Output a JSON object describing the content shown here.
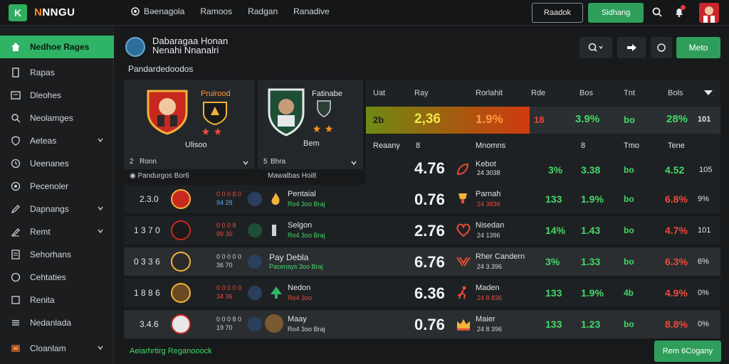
{
  "app": {
    "logo_letter": "K",
    "title_a": "N",
    "title_b": "NNGU"
  },
  "topnav": [
    {
      "label": "Bəenagola",
      "icon": "target-icon"
    },
    {
      "label": "Ramoos"
    },
    {
      "label": "Radgan"
    },
    {
      "label": "Ranadive"
    }
  ],
  "top_actions": {
    "outline_label": "Raadok",
    "green_label": "Sidhang"
  },
  "sidebar": {
    "items": [
      {
        "label": "Nedhoe Rages",
        "icon": "home-icon",
        "active": true
      },
      {
        "label": "Rapas",
        "icon": "bookmark-icon"
      },
      {
        "label": "Dleohes",
        "icon": "card-icon"
      },
      {
        "label": "Neolamges",
        "icon": "search-icon"
      },
      {
        "label": "Aeteas",
        "icon": "shield-icon",
        "chevron": true
      },
      {
        "label": "Ueenanes",
        "icon": "clock-icon"
      },
      {
        "label": "Pecenoler",
        "icon": "globe-icon"
      },
      {
        "label": "Dapnangs",
        "icon": "pencil-icon",
        "chevron": true
      },
      {
        "label": "Remt",
        "icon": "pen-icon",
        "chevron": true
      },
      {
        "label": "Sehorhans",
        "icon": "document-icon"
      },
      {
        "label": "Cehtaties",
        "icon": "circle-icon"
      },
      {
        "label": "Renita",
        "icon": "tile-icon"
      },
      {
        "label": "Nedanlada",
        "icon": "list-icon"
      },
      {
        "label": "Cloanlam",
        "icon": "box-icon",
        "chevron": true
      }
    ]
  },
  "header": {
    "title_line1": "Dabaragaa Honan",
    "title_line2": "Nenahi Nnanalri",
    "subtitle": "Pandardedoodos"
  },
  "toolbar": {
    "green_label": "Meto"
  },
  "match_cards": [
    {
      "label": "Pruirood",
      "team": "Ulisoo",
      "footer": "Ronn",
      "footer_prefix": "2",
      "below": "Pandurgos Bor6"
    },
    {
      "label": "Fatinabe",
      "team": "Bem",
      "footer": "Bhra",
      "footer_prefix": "5",
      "below": "Mawalbas Hoi8"
    }
  ],
  "stats_header": [
    "Uat",
    "Ray",
    "Rorlahit",
    "Rde",
    "Bos",
    "Tnt",
    "Bols"
  ],
  "highlight_row": {
    "a": "2b",
    "b": "2,36",
    "c": "1.9%",
    "d": "18",
    "e": "3.9%",
    "f": "bo",
    "g": "28%",
    "h": "101"
  },
  "upper_sub_row": {
    "label": "Reaany",
    "a": "8",
    "b": "Mnomns",
    "c": "8",
    "d": "Tmo",
    "e": "Tene"
  },
  "upper_data_row": {
    "big": "4.76",
    "name": "Kebot",
    "sub": "24 3038",
    "v1": "3%",
    "v2": "3.38",
    "v3": "bo",
    "v4": "4.52",
    "v5": "105"
  },
  "rows": [
    {
      "rank": "2.3.0",
      "mini1": "0 0 0 8 0",
      "mini2": "94 28",
      "name": "Pentaial",
      "sub": "Ro4 3oo Braj",
      "big": "0.76",
      "rname": "Parnah",
      "rsub": "24 3836",
      "v1": "133",
      "v2": "1.9%",
      "v3": "bo",
      "v4": "6.8%",
      "v5": "9%"
    },
    {
      "rank": "1 3 7 0",
      "mini1": "0 0 0 8",
      "mini2": "99 30",
      "name": "Selgon",
      "sub": "Ro4 3oo Braj",
      "big": "2.76",
      "rname": "Nisedan",
      "rsub": "24 1396",
      "v1": "14%",
      "v2": "1.43",
      "v3": "bo",
      "v4": "4.7%",
      "v5": "101"
    },
    {
      "rank": "0 3 3 6",
      "mini1": "0 0 0 0 0",
      "mini2": "36 70",
      "name": "Pay Debla",
      "sub": "Pacenays 3oo Braj",
      "big": "6.76",
      "rname": "Rher Candern",
      "rsub": "24 3.396",
      "v1": "3%",
      "v2": "1.33",
      "v3": "bo",
      "v4": "6.3%",
      "v5": "6%"
    },
    {
      "rank": "1 8 8 6",
      "mini1": "0 0 0 0 0",
      "mini2": "34 36",
      "name": "Nedon",
      "sub": "Ro4 3oo",
      "big": "6.36",
      "rname": "Maden",
      "rsub": "24 8 836",
      "v1": "133",
      "v2": "1.9%",
      "v3": "4b",
      "v4": "4.9%",
      "v5": "0%"
    },
    {
      "rank": "3.4.6",
      "mini1": "0 0 0 8 0",
      "mini2": "19 70",
      "name": "Maay",
      "sub": "Ro4 3oo Braj",
      "big": "0.76",
      "rname": "Maier",
      "rsub": "24 8 396",
      "v1": "133",
      "v2": "1.23",
      "v3": "bo",
      "v4": "8.8%",
      "v5": "0%"
    }
  ],
  "footer": {
    "link": "Aeiarhrtirg Reganooock",
    "button": "Rem 6Cogany"
  },
  "colors": {
    "accent": "#2fb366",
    "red": "#ec4a3a",
    "panel": "#24272a"
  }
}
